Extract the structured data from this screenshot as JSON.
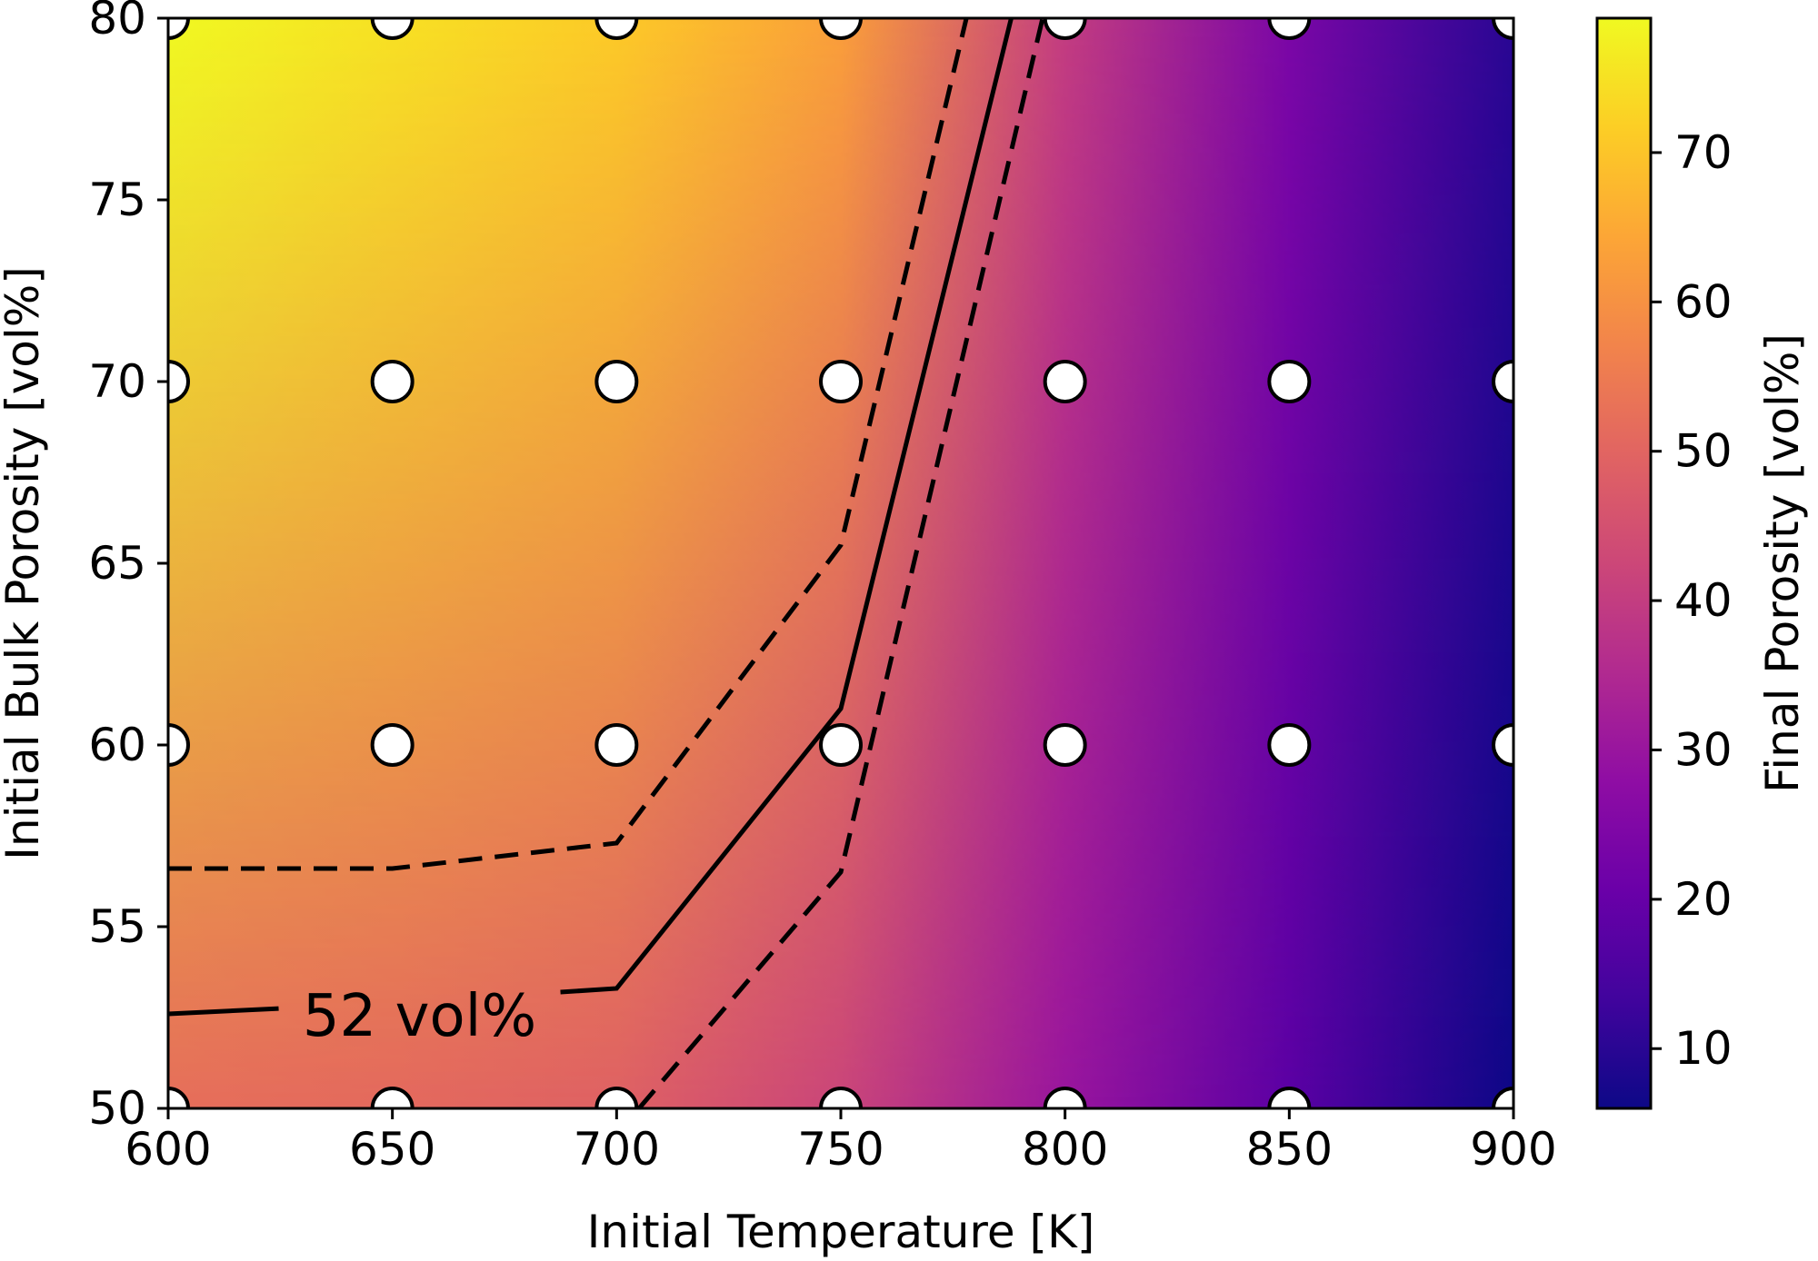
{
  "chart_data": {
    "type": "heatmap",
    "xlabel": "Initial Temperature [K]",
    "ylabel": "Initial Bulk Porosity [vol%]",
    "colorbar_label": "Final Porosity [vol%]",
    "xlim": [
      600,
      900
    ],
    "ylim": [
      50,
      80
    ],
    "x_ticks": [
      600,
      650,
      700,
      750,
      800,
      850,
      900
    ],
    "y_ticks": [
      50,
      55,
      60,
      65,
      70,
      75,
      80
    ],
    "colorbar_range": [
      6,
      79
    ],
    "colorbar_ticks": [
      10,
      20,
      30,
      40,
      50,
      60,
      70
    ],
    "colormap": "plasma",
    "field_values_by_temperature": {
      "temperature": [
        600,
        650,
        700,
        750,
        800,
        850,
        900
      ],
      "final_porosity_at_80": [
        79,
        75,
        71,
        63,
        40,
        24,
        10
      ],
      "final_porosity_at_50": [
        52,
        51,
        49,
        42,
        30,
        18,
        6
      ]
    },
    "sample_points": {
      "x": [
        600,
        650,
        700,
        750,
        800,
        850,
        900
      ],
      "y": [
        50,
        60,
        70,
        80
      ]
    },
    "contours": [
      {
        "name": "52 vol% (solid)",
        "style": "solid",
        "x": [
          600,
          650,
          700,
          750,
          788
        ],
        "y": [
          52.6,
          52.9,
          53.3,
          61,
          80
        ]
      },
      {
        "name": "upper bound (dashed)",
        "style": "dashed",
        "x": [
          600,
          650,
          700,
          750,
          778
        ],
        "y": [
          56.6,
          56.6,
          57.3,
          65.5,
          80
        ]
      },
      {
        "name": "lower bound (dashed)",
        "style": "dashed",
        "x": [
          705,
          750,
          795
        ],
        "y": [
          50,
          56.5,
          80
        ]
      }
    ],
    "annotation": {
      "text": "52 vol%",
      "x": 652,
      "y": 52.6
    }
  }
}
